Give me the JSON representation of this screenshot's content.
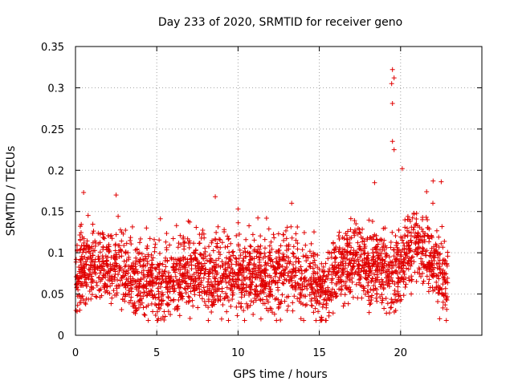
{
  "chart_data": {
    "type": "scatter",
    "title": "Day 233 of 2020, SRMTID for receiver geno",
    "xlabel": "GPS time / hours",
    "ylabel": "SRMTID / TECUs",
    "xlim": [
      0,
      25
    ],
    "ylim": [
      0,
      0.35
    ],
    "xticks": [
      0,
      5,
      10,
      15,
      20
    ],
    "xtick_labels": [
      "0",
      "5",
      "10",
      "15",
      "20"
    ],
    "yticks": [
      0,
      0.05,
      0.1,
      0.15,
      0.2,
      0.25,
      0.3,
      0.35
    ],
    "ytick_labels": [
      "0",
      "0.05",
      "0.1",
      "0.15",
      "0.2",
      "0.25",
      "0.3",
      "0.35"
    ],
    "grid": true,
    "marker": "+",
    "color": "#e00000",
    "x_range_observed": [
      0,
      22.9
    ],
    "typical_value_range": [
      0.03,
      0.13
    ],
    "notable_points": [
      {
        "x": 0.5,
        "y": 0.173
      },
      {
        "x": 2.5,
        "y": 0.17
      },
      {
        "x": 8.6,
        "y": 0.168
      },
      {
        "x": 10.0,
        "y": 0.153
      },
      {
        "x": 13.3,
        "y": 0.16
      },
      {
        "x": 18.4,
        "y": 0.185
      },
      {
        "x": 19.5,
        "y": 0.322
      },
      {
        "x": 19.6,
        "y": 0.312
      },
      {
        "x": 19.45,
        "y": 0.305
      },
      {
        "x": 19.5,
        "y": 0.281
      },
      {
        "x": 19.5,
        "y": 0.235
      },
      {
        "x": 19.6,
        "y": 0.225
      },
      {
        "x": 20.1,
        "y": 0.202
      },
      {
        "x": 22.0,
        "y": 0.187
      },
      {
        "x": 22.5,
        "y": 0.186
      },
      {
        "x": 21.6,
        "y": 0.174
      },
      {
        "x": 5.1,
        "y": 0.02
      },
      {
        "x": 22.4,
        "y": 0.02
      }
    ],
    "baseline_profile": [
      {
        "x": 0,
        "y": 0.075
      },
      {
        "x": 1.5,
        "y": 0.09
      },
      {
        "x": 3,
        "y": 0.075
      },
      {
        "x": 5,
        "y": 0.06
      },
      {
        "x": 7,
        "y": 0.075
      },
      {
        "x": 9,
        "y": 0.07
      },
      {
        "x": 11,
        "y": 0.07
      },
      {
        "x": 13,
        "y": 0.075
      },
      {
        "x": 15.5,
        "y": 0.06
      },
      {
        "x": 17,
        "y": 0.095
      },
      {
        "x": 18.5,
        "y": 0.08
      },
      {
        "x": 19.5,
        "y": 0.07
      },
      {
        "x": 21,
        "y": 0.11
      },
      {
        "x": 22.9,
        "y": 0.065
      }
    ]
  }
}
